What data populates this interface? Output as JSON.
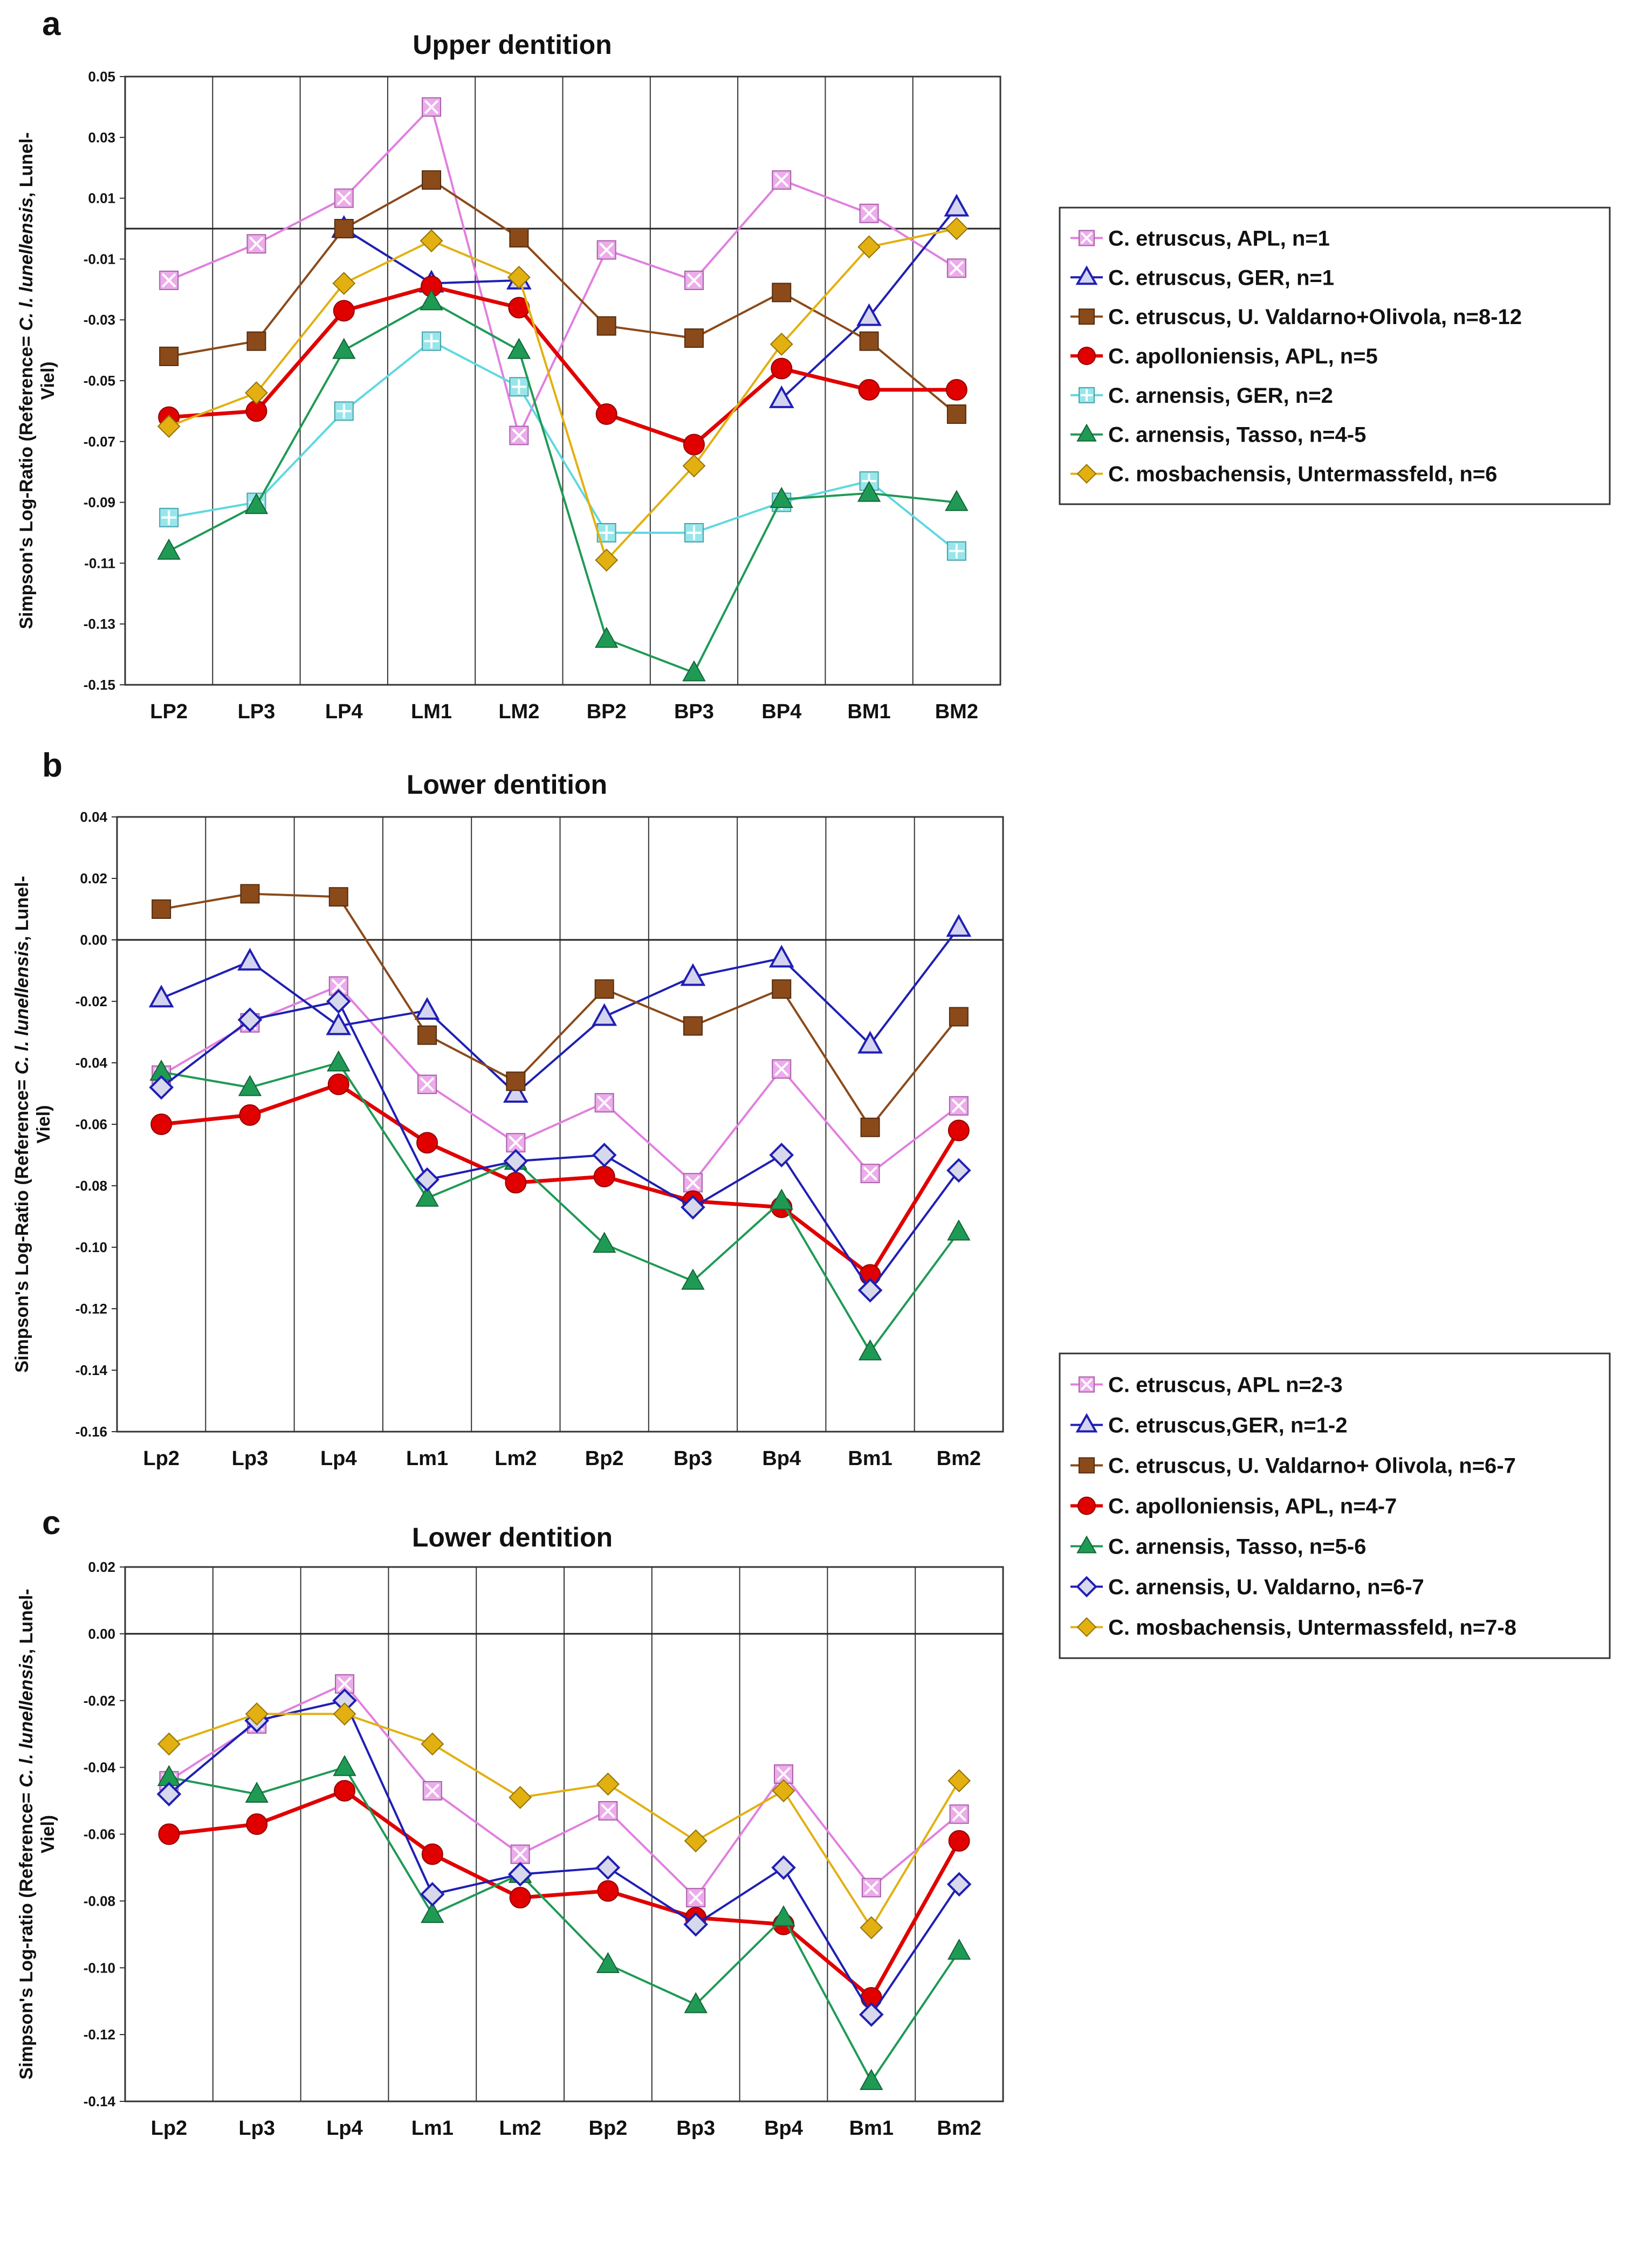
{
  "chart_data": [
    {
      "type": "line",
      "panel_label": "a",
      "title": "Upper dentition",
      "ylabel": [
        "Simpson's Log-Ratio (Reference= ",
        "C. l. lunellensis",
        ", Lunel-",
        "Viel)"
      ],
      "ylim": [
        -0.15,
        0.05
      ],
      "yticks": [
        0.05,
        0.03,
        0.01,
        -0.01,
        -0.03,
        -0.05,
        -0.07,
        -0.09,
        -0.11,
        -0.13,
        -0.15
      ],
      "ytick_labels": [
        "0.05",
        "0.03",
        "0.01",
        "-0.01",
        "-0.03",
        "-0.05",
        "-0.07",
        "-0.09",
        "-0.11",
        "-0.13",
        "-0.15"
      ],
      "categories": [
        "LP2",
        "LP3",
        "LP4",
        "LM1",
        "LM2",
        "BP2",
        "BP3",
        "BP4",
        "BM1",
        "BM2"
      ],
      "series": [
        {
          "name": "C. etruscus, APL, n=1",
          "color": "#e17fe0",
          "marker": "squareX",
          "values": [
            -0.017,
            -0.005,
            0.01,
            0.04,
            -0.068,
            -0.007,
            -0.017,
            0.016,
            0.005,
            -0.013
          ]
        },
        {
          "name": "C. etruscus, GER, n=1",
          "color": "#1f1fb4",
          "marker": "triangleOpen",
          "values": [
            null,
            null,
            0.0,
            -0.018,
            -0.017,
            null,
            null,
            -0.056,
            -0.029,
            0.007
          ]
        },
        {
          "name": "C. etruscus, U. Valdarno+Olivola, n=8-12",
          "color": "#8b4a1a",
          "marker": "square",
          "values": [
            -0.042,
            -0.037,
            0.0,
            0.016,
            -0.003,
            -0.032,
            -0.036,
            -0.021,
            -0.037,
            -0.061
          ]
        },
        {
          "name": "C. apolloniensis, APL, n=5",
          "color": "#e00000",
          "marker": "circle",
          "values": [
            -0.062,
            -0.06,
            -0.027,
            -0.019,
            -0.026,
            -0.061,
            -0.071,
            -0.046,
            -0.053,
            -0.053
          ]
        },
        {
          "name": "C. arnensis, GER, n=2",
          "color": "#5fd8e0",
          "marker": "squarePlus",
          "values": [
            -0.095,
            -0.09,
            -0.06,
            -0.037,
            -0.052,
            -0.1,
            -0.1,
            -0.09,
            -0.083,
            -0.106
          ]
        },
        {
          "name": "C. arnensis, Tasso, n=4-5",
          "color": "#1f9a55",
          "marker": "triangle",
          "values": [
            -0.106,
            -0.091,
            -0.04,
            -0.024,
            -0.04,
            -0.135,
            -0.146,
            -0.089,
            -0.087,
            -0.09
          ]
        },
        {
          "name": "C. mosbachensis, Untermassfeld, n=6",
          "color": "#e2b010",
          "marker": "diamond",
          "values": [
            -0.065,
            -0.054,
            -0.018,
            -0.004,
            -0.016,
            -0.109,
            -0.078,
            -0.038,
            -0.006,
            0.0
          ]
        }
      ]
    },
    {
      "type": "line",
      "panel_label": "b",
      "title": "Lower dentition",
      "ylabel": [
        "Simpson's Log-Ratio (Reference= ",
        "C. l. lunellensis",
        ", Lunel-",
        "Viel)"
      ],
      "ylim": [
        -0.16,
        0.04
      ],
      "yticks": [
        0.04,
        0.02,
        0.0,
        -0.02,
        -0.04,
        -0.06,
        -0.08,
        -0.1,
        -0.12,
        -0.14,
        -0.16
      ],
      "ytick_labels": [
        "0.04",
        "0.02",
        "0.00",
        "-0.02",
        "-0.04",
        "-0.06",
        "-0.08",
        "-0.10",
        "-0.12",
        "-0.14",
        "-0.16"
      ],
      "categories": [
        "Lp2",
        "Lp3",
        "Lp4",
        "Lm1",
        "Lm2",
        "Bp2",
        "Bp3",
        "Bp4",
        "Bm1",
        "Bm2"
      ],
      "series": [
        {
          "name": "C. etruscus, APL n=2-3",
          "color": "#e17fe0",
          "marker": "squareX",
          "values": [
            -0.044,
            -0.027,
            -0.015,
            -0.047,
            -0.066,
            -0.053,
            -0.079,
            -0.042,
            -0.076,
            -0.054
          ]
        },
        {
          "name": "C. etruscus,GER, n=1-2",
          "color": "#1f1fb4",
          "marker": "triangleOpen",
          "values": [
            -0.019,
            -0.007,
            -0.028,
            -0.023,
            -0.05,
            -0.025,
            -0.012,
            -0.006,
            -0.034,
            0.004
          ]
        },
        {
          "name": "C. etruscus, U. Valdarno+ Olivola, n=6-7",
          "color": "#8b4a1a",
          "marker": "square",
          "values": [
            0.01,
            0.015,
            0.014,
            -0.031,
            -0.046,
            -0.016,
            -0.028,
            -0.016,
            -0.061,
            -0.025
          ]
        },
        {
          "name": "C. apolloniensis, APL, n=4-7",
          "color": "#e00000",
          "marker": "circle",
          "values": [
            -0.06,
            -0.057,
            -0.047,
            -0.066,
            -0.079,
            -0.077,
            -0.085,
            -0.087,
            -0.109,
            -0.062
          ]
        },
        {
          "name": "C. arnensis, Tasso, n=5-6",
          "color": "#1f9a55",
          "marker": "triangle",
          "values": [
            -0.043,
            -0.048,
            -0.04,
            -0.084,
            -0.072,
            -0.099,
            -0.111,
            -0.085,
            -0.134,
            -0.095
          ]
        },
        {
          "name": "C. arnensis, U. Valdarno, n=6-7",
          "color": "#1f1fb4",
          "marker": "diamondOpen",
          "values": [
            -0.048,
            -0.026,
            -0.02,
            -0.078,
            -0.072,
            -0.07,
            -0.087,
            -0.07,
            -0.114,
            -0.075
          ]
        }
      ]
    },
    {
      "type": "line",
      "panel_label": "c",
      "title": "Lower dentition",
      "ylabel": [
        "Simpson's Log-ratio (Reference= ",
        "C. l. lunellensis",
        ", Lunel-",
        "Viel)"
      ],
      "ylim": [
        -0.14,
        0.02
      ],
      "yticks": [
        0.02,
        0.0,
        -0.02,
        -0.04,
        -0.06,
        -0.08,
        -0.1,
        -0.12,
        -0.14
      ],
      "ytick_labels": [
        "0.02",
        "0.00",
        "-0.02",
        "-0.04",
        "-0.06",
        "-0.08",
        "-0.10",
        "-0.12",
        "-0.14"
      ],
      "categories": [
        "Lp2",
        "Lp3",
        "Lp4",
        "Lm1",
        "Lm2",
        "Bp2",
        "Bp3",
        "Bp4",
        "Bm1",
        "Bm2"
      ],
      "series": [
        {
          "name": "C. etruscus, APL n=2-3",
          "color": "#e17fe0",
          "marker": "squareX",
          "values": [
            -0.044,
            -0.027,
            -0.015,
            -0.047,
            -0.066,
            -0.053,
            -0.079,
            -0.042,
            -0.076,
            -0.054
          ]
        },
        {
          "name": "C. apolloniensis, APL, n=4-7",
          "color": "#e00000",
          "marker": "circle",
          "values": [
            -0.06,
            -0.057,
            -0.047,
            -0.066,
            -0.079,
            -0.077,
            -0.085,
            -0.087,
            -0.109,
            -0.062
          ]
        },
        {
          "name": "C. arnensis, Tasso, n=5-6",
          "color": "#1f9a55",
          "marker": "triangle",
          "values": [
            -0.043,
            -0.048,
            -0.04,
            -0.084,
            -0.072,
            -0.099,
            -0.111,
            -0.085,
            -0.134,
            -0.095
          ]
        },
        {
          "name": "C. arnensis, U. Valdarno, n=6-7",
          "color": "#1f1fb4",
          "marker": "diamondOpen",
          "values": [
            -0.048,
            -0.026,
            -0.02,
            -0.078,
            -0.072,
            -0.07,
            -0.087,
            -0.07,
            -0.114,
            -0.075
          ]
        },
        {
          "name": "C. mosbachensis, Untermassfeld, n=7-8",
          "color": "#e2b010",
          "marker": "diamond",
          "values": [
            -0.033,
            -0.024,
            -0.024,
            -0.033,
            -0.049,
            -0.045,
            -0.062,
            -0.047,
            -0.088,
            -0.044
          ]
        }
      ]
    }
  ],
  "legends": [
    {
      "items": [
        {
          "label": "C. etruscus, APL, n=1",
          "color": "#e17fe0",
          "marker": "squareX"
        },
        {
          "label": "C. etruscus, GER, n=1",
          "color": "#1f1fb4",
          "marker": "triangleOpen"
        },
        {
          "label": "C. etruscus, U. Valdarno+Olivola, n=8-12",
          "color": "#8b4a1a",
          "marker": "square"
        },
        {
          "label": "C. apolloniensis, APL, n=5",
          "color": "#e00000",
          "marker": "circle"
        },
        {
          "label": "C. arnensis, GER, n=2",
          "color": "#5fd8e0",
          "marker": "squarePlus"
        },
        {
          "label": "C. arnensis, Tasso, n=4-5",
          "color": "#1f9a55",
          "marker": "triangle"
        },
        {
          "label": "C. mosbachensis, Untermassfeld, n=6",
          "color": "#e2b010",
          "marker": "diamond"
        }
      ]
    },
    {
      "items": [
        {
          "label": "C. etruscus, APL n=2-3",
          "color": "#e17fe0",
          "marker": "squareX"
        },
        {
          "label": "C. etruscus,GER, n=1-2",
          "color": "#1f1fb4",
          "marker": "triangleOpen"
        },
        {
          "label": "C. etruscus, U. Valdarno+ Olivola, n=6-7",
          "color": "#8b4a1a",
          "marker": "square"
        },
        {
          "label": "C. apolloniensis, APL, n=4-7",
          "color": "#e00000",
          "marker": "circle"
        },
        {
          "label": "C. arnensis, Tasso, n=5-6",
          "color": "#1f9a55",
          "marker": "triangle"
        },
        {
          "label": "C. arnensis, U. Valdarno, n=6-7",
          "color": "#1f1fb4",
          "marker": "diamondOpen"
        },
        {
          "label": "C. mosbachensis, Untermassfeld, n=7-8",
          "color": "#e2b010",
          "marker": "diamond"
        }
      ]
    }
  ]
}
